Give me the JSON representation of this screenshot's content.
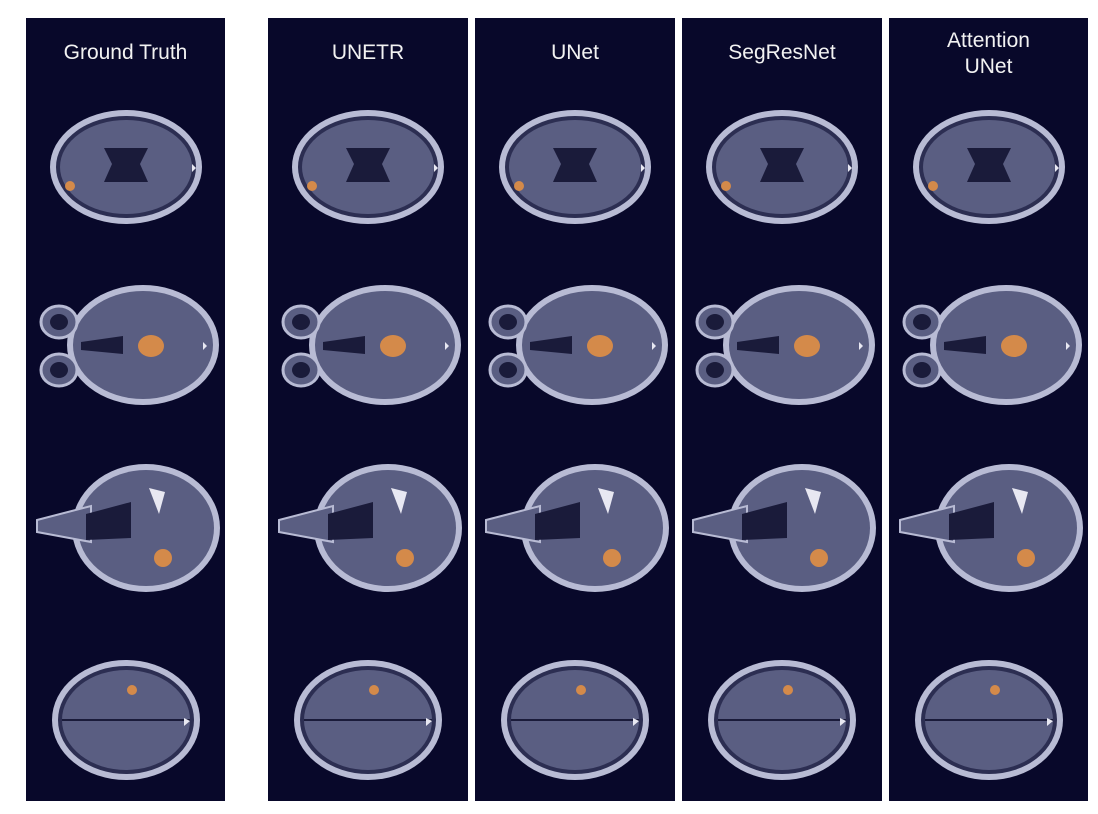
{
  "columns": [
    {
      "id": "ground-truth",
      "title": "Ground Truth"
    },
    {
      "id": "unetr",
      "title": "UNETR"
    },
    {
      "id": "unet",
      "title": "UNet"
    },
    {
      "id": "segresnet",
      "title": "SegResNet"
    },
    {
      "id": "attention-unet",
      "title": "Attention\nUNet"
    }
  ],
  "colors": {
    "panel_background": "#08082a",
    "title_text": "#f2f2f2",
    "scan_tissue": "#5a5e82",
    "scan_skull": "#b8bbd4",
    "scan_dark": "#1a1b3a",
    "tumor_overlay": "#d48a4a"
  }
}
